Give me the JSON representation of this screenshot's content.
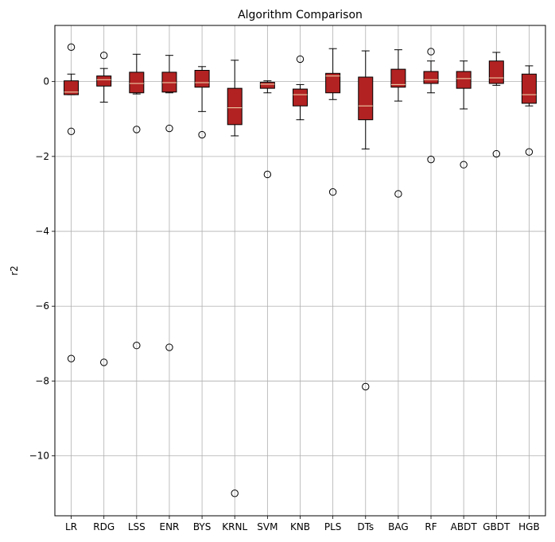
{
  "chart_data": {
    "type": "box",
    "title": "Algorithm Comparison",
    "xlabel": "",
    "ylabel": "r2",
    "ylim": [
      -11.6,
      1.5
    ],
    "yticks": [
      0,
      -2,
      -4,
      -6,
      -8,
      -10
    ],
    "ytick_labels": [
      "0",
      "−2",
      "−4",
      "−6",
      "−8",
      "−10"
    ],
    "grid": true,
    "box_color": "#b22222",
    "median_color": "#f5deb3",
    "categories": [
      "LR",
      "RDG",
      "LSS",
      "ENR",
      "BYS",
      "KRNL",
      "SVM",
      "KNB",
      "PLS",
      "DTs",
      "BAG",
      "RF",
      "ABDT",
      "GBDT",
      "HGB"
    ],
    "boxes": [
      {
        "label": "LR",
        "whislo": -0.35,
        "q1": -0.35,
        "med": -0.28,
        "q3": 0.02,
        "whishi": 0.2,
        "fliers": [
          0.92,
          -1.33,
          -7.4
        ]
      },
      {
        "label": "RDG",
        "whislo": -0.55,
        "q1": -0.12,
        "med": 0.05,
        "q3": 0.15,
        "whishi": 0.35,
        "fliers": [
          0.7,
          -7.5
        ]
      },
      {
        "label": "LSS",
        "whislo": -0.33,
        "q1": -0.3,
        "med": -0.05,
        "q3": 0.25,
        "whishi": 0.73,
        "fliers": [
          -1.28,
          -7.05
        ]
      },
      {
        "label": "ENR",
        "whislo": -0.3,
        "q1": -0.28,
        "med": -0.03,
        "q3": 0.25,
        "whishi": 0.7,
        "fliers": [
          -1.25,
          -7.1
        ]
      },
      {
        "label": "BYS",
        "whislo": -0.8,
        "q1": -0.15,
        "med": -0.03,
        "q3": 0.3,
        "whishi": 0.4,
        "fliers": [
          -1.42
        ]
      },
      {
        "label": "KRNL",
        "whislo": -1.45,
        "q1": -1.15,
        "med": -0.7,
        "q3": -0.18,
        "whishi": 0.57,
        "fliers": [
          -11.0
        ]
      },
      {
        "label": "SVM",
        "whislo": -0.3,
        "q1": -0.18,
        "med": -0.07,
        "q3": -0.02,
        "whishi": 0.02,
        "fliers": [
          -2.48
        ]
      },
      {
        "label": "KNB",
        "whislo": -1.02,
        "q1": -0.65,
        "med": -0.35,
        "q3": -0.2,
        "whishi": -0.08,
        "fliers": [
          0.6
        ]
      },
      {
        "label": "PLS",
        "whislo": -0.48,
        "q1": -0.3,
        "med": 0.15,
        "q3": 0.22,
        "whishi": 0.88,
        "fliers": [
          -2.95
        ]
      },
      {
        "label": "DTs",
        "whislo": -1.8,
        "q1": -1.02,
        "med": -0.65,
        "q3": 0.12,
        "whishi": 0.82,
        "fliers": [
          -8.15
        ]
      },
      {
        "label": "BAG",
        "whislo": -0.52,
        "q1": -0.15,
        "med": -0.08,
        "q3": 0.33,
        "whishi": 0.85,
        "fliers": [
          -3.0
        ]
      },
      {
        "label": "RF",
        "whislo": -0.3,
        "q1": -0.05,
        "med": 0.05,
        "q3": 0.27,
        "whishi": 0.55,
        "fliers": [
          0.8,
          -2.08
        ]
      },
      {
        "label": "ABDT",
        "whislo": -0.73,
        "q1": -0.18,
        "med": 0.08,
        "q3": 0.27,
        "whishi": 0.55,
        "fliers": [
          -2.22
        ]
      },
      {
        "label": "GBDT",
        "whislo": -0.1,
        "q1": -0.05,
        "med": 0.1,
        "q3": 0.55,
        "whishi": 0.78,
        "fliers": [
          -1.93
        ]
      },
      {
        "label": "HGB",
        "whislo": -0.65,
        "q1": -0.58,
        "med": -0.35,
        "q3": 0.2,
        "whishi": 0.42,
        "fliers": [
          -1.88
        ]
      }
    ]
  }
}
